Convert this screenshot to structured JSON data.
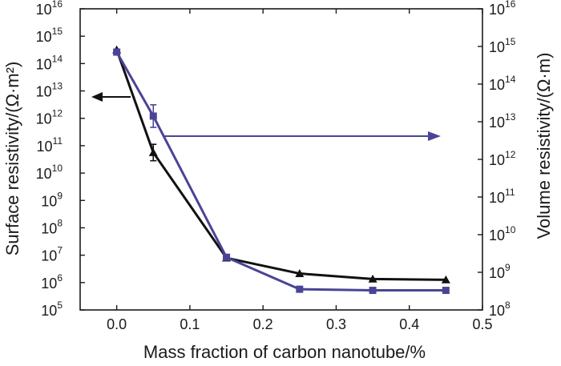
{
  "chart_data": {
    "type": "line",
    "title": "",
    "xlabel": "Mass fraction of carbon nanotube/%",
    "ylabel_left": "Surface resistivity/(Ω·m²)",
    "ylabel_right": "Volume resistivity/(Ω·m)",
    "xlim": [
      -0.05,
      0.5
    ],
    "x_ticks": [
      "0.0",
      "0.1",
      "0.2",
      "0.3",
      "0.4",
      "0.5"
    ],
    "y_left_scale": "log",
    "y_left_range_exp": [
      5,
      16
    ],
    "y_right_scale": "log",
    "y_right_range_exp": [
      8,
      16
    ],
    "grid": false,
    "legend": "none; arrows indicate axis for each series",
    "series": [
      {
        "axis": "left",
        "color": "#111111",
        "marker": "triangle",
        "x": [
          0.0,
          0.05,
          0.15,
          0.25,
          0.35,
          0.45
        ],
        "y_exp": [
          14.5,
          10.75,
          6.9,
          6.33,
          6.13,
          6.1
        ],
        "error_exp": [
          0.0,
          0.3,
          0.0,
          0.0,
          0.0,
          0.0
        ]
      },
      {
        "axis": "right",
        "color": "#4a4496",
        "marker": "square",
        "x": [
          0.0,
          0.05,
          0.15,
          0.25,
          0.35,
          0.45
        ],
        "y_exp": [
          14.85,
          13.15,
          9.4,
          8.55,
          8.52,
          8.52
        ],
        "error_exp": [
          0.0,
          0.3,
          0.0,
          0.0,
          0.0,
          0.05
        ]
      }
    ],
    "annotations": [
      {
        "type": "arrow",
        "direction": "left",
        "color": "#111111",
        "points_to": "left axis"
      },
      {
        "type": "arrow",
        "direction": "right",
        "color": "#4a4496",
        "points_to": "right axis"
      }
    ]
  }
}
